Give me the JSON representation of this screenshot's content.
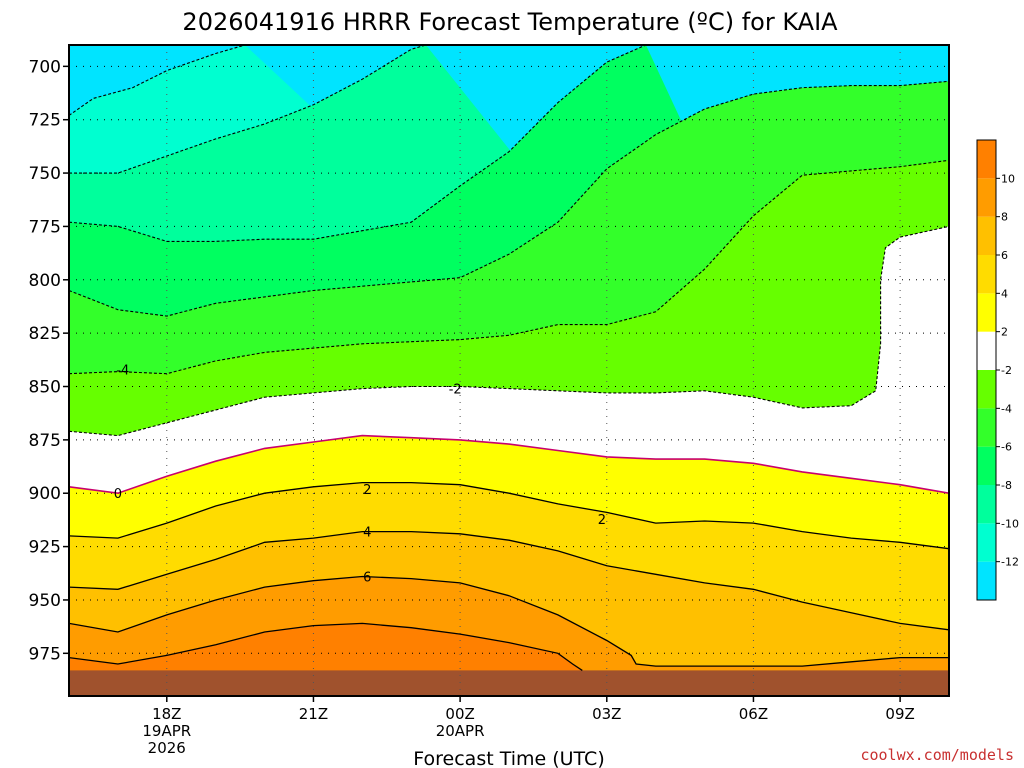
{
  "chart_data": {
    "type": "contour",
    "title": "2026041916 HRRR Forecast Temperature (ºC) for KAIA",
    "xlabel": "Forecast Time (UTC)",
    "ylabel": "",
    "y_ticks": [
      "700",
      "725",
      "750",
      "775",
      "800",
      "825",
      "850",
      "875",
      "900",
      "925",
      "950",
      "975"
    ],
    "x_ticks": [
      {
        "label": "18Z",
        "sub": [
          "19APR",
          "2026"
        ]
      },
      {
        "label": "21Z",
        "sub": []
      },
      {
        "label": "00Z",
        "sub": [
          "20APR"
        ]
      },
      {
        "label": "03Z",
        "sub": []
      },
      {
        "label": "06Z",
        "sub": []
      },
      {
        "label": "09Z",
        "sub": []
      }
    ],
    "x_hours": [
      16,
      34
    ],
    "y_range_hpa": [
      690,
      995
    ],
    "grid": "dotted",
    "colorbar": {
      "levels": [
        -14,
        -12,
        -10,
        -8,
        -6,
        -4,
        -2,
        2,
        4,
        6,
        8,
        10,
        12
      ],
      "tick_labels": [
        "-12",
        "-10",
        "-8",
        "-6",
        "-4",
        "-2",
        "2",
        "4",
        "6",
        "8",
        "10"
      ],
      "colors": [
        "#00e4ff",
        "#00ffd0",
        "#00ff9c",
        "#00ff60",
        "#33ff2a",
        "#66ff00",
        "#ffffff",
        "#ffff00",
        "#ffdc00",
        "#ffc000",
        "#ff9c00",
        "#ff8000"
      ],
      "placement": "right"
    },
    "contour_labels": [
      {
        "text": "-4",
        "x": 17.1,
        "y": 842
      },
      {
        "text": "-2",
        "x": 23.9,
        "y": 851
      },
      {
        "text": "0",
        "x": 17.0,
        "y": 900
      },
      {
        "text": "2",
        "x": 22.1,
        "y": 898
      },
      {
        "text": "2",
        "x": 26.9,
        "y": 912
      },
      {
        "text": "4",
        "x": 22.1,
        "y": 918
      },
      {
        "text": "6",
        "x": 22.1,
        "y": 939
      }
    ],
    "contours": [
      {
        "level": -12,
        "style": "dashed",
        "fill": "#00ffd0",
        "points": [
          [
            16,
            723
          ],
          [
            16.5,
            715
          ],
          [
            17.3,
            710
          ],
          [
            18,
            702
          ],
          [
            19,
            694
          ],
          [
            19.6,
            690
          ]
        ]
      },
      {
        "level": -10,
        "style": "dashed",
        "fill": "#00ff9c",
        "points": [
          [
            16,
            750
          ],
          [
            17,
            750
          ],
          [
            18,
            742
          ],
          [
            19,
            734
          ],
          [
            20,
            727
          ],
          [
            21,
            718
          ],
          [
            22,
            706
          ],
          [
            23,
            692
          ],
          [
            23.3,
            690
          ]
        ]
      },
      {
        "level": -8,
        "style": "dashed",
        "fill": "#00ff60",
        "points": [
          [
            16,
            773
          ],
          [
            17,
            775
          ],
          [
            18,
            782
          ],
          [
            19,
            782
          ],
          [
            20,
            781
          ],
          [
            21,
            781
          ],
          [
            22,
            777
          ],
          [
            23,
            773
          ],
          [
            24,
            756
          ],
          [
            25,
            740
          ],
          [
            26,
            717
          ],
          [
            27,
            698
          ],
          [
            27.8,
            690
          ]
        ]
      },
      {
        "level": -6,
        "style": "dashed",
        "fill": "#33ff2a",
        "points": [
          [
            16,
            805
          ],
          [
            17,
            814
          ],
          [
            18,
            817
          ],
          [
            19,
            811
          ],
          [
            20,
            808
          ],
          [
            21,
            805
          ],
          [
            22,
            803
          ],
          [
            23,
            801
          ],
          [
            24,
            799
          ],
          [
            25,
            788
          ],
          [
            26,
            773
          ],
          [
            27,
            748
          ],
          [
            28,
            732
          ],
          [
            29,
            720
          ],
          [
            30,
            713
          ],
          [
            31,
            710
          ],
          [
            32,
            709
          ],
          [
            33,
            709
          ],
          [
            34,
            707
          ]
        ]
      },
      {
        "level": -4,
        "style": "dashed",
        "fill": "#66ff00",
        "points": [
          [
            16,
            844
          ],
          [
            17,
            843
          ],
          [
            18,
            844
          ],
          [
            19,
            838
          ],
          [
            20,
            834
          ],
          [
            21,
            832
          ],
          [
            22,
            830
          ],
          [
            23,
            829
          ],
          [
            24,
            828
          ],
          [
            25,
            826
          ],
          [
            26,
            821
          ],
          [
            27,
            821
          ],
          [
            28,
            815
          ],
          [
            29,
            795
          ],
          [
            30,
            770
          ],
          [
            31,
            751
          ],
          [
            32,
            749
          ],
          [
            33,
            747
          ],
          [
            34,
            744
          ]
        ]
      },
      {
        "level": -2,
        "style": "dashed",
        "fill": "#ffffff",
        "points": [
          [
            16,
            871
          ],
          [
            17,
            873
          ],
          [
            18,
            867
          ],
          [
            19,
            861
          ],
          [
            20,
            855
          ],
          [
            21,
            853
          ],
          [
            22,
            851
          ],
          [
            23,
            850
          ],
          [
            24,
            850
          ],
          [
            25,
            851
          ],
          [
            26,
            852
          ],
          [
            27,
            853
          ],
          [
            28,
            853
          ],
          [
            29,
            852
          ],
          [
            30,
            855
          ],
          [
            31,
            860
          ],
          [
            32,
            859
          ],
          [
            32.5,
            852
          ],
          [
            32.6,
            830
          ],
          [
            32.6,
            800
          ],
          [
            32.7,
            785
          ],
          [
            33,
            780
          ],
          [
            34,
            775
          ]
        ]
      },
      {
        "level": 0,
        "style": "magenta",
        "fill": "#ffff00",
        "points": [
          [
            16,
            897
          ],
          [
            17,
            900
          ],
          [
            18,
            892
          ],
          [
            19,
            885
          ],
          [
            20,
            879
          ],
          [
            21,
            876
          ],
          [
            22,
            873
          ],
          [
            23,
            874
          ],
          [
            24,
            875
          ],
          [
            25,
            877
          ],
          [
            26,
            880
          ],
          [
            27,
            883
          ],
          [
            28,
            884
          ],
          [
            29,
            884
          ],
          [
            30,
            886
          ],
          [
            31,
            890
          ],
          [
            32,
            893
          ],
          [
            33,
            896
          ],
          [
            34,
            900
          ]
        ]
      },
      {
        "level": 2,
        "style": "solid",
        "fill": "#ffdc00",
        "points": [
          [
            16,
            920
          ],
          [
            17,
            921
          ],
          [
            18,
            914
          ],
          [
            19,
            906
          ],
          [
            20,
            900
          ],
          [
            21,
            897
          ],
          [
            22,
            895
          ],
          [
            23,
            895
          ],
          [
            24,
            896
          ],
          [
            25,
            900
          ],
          [
            26,
            905
          ],
          [
            27,
            909
          ],
          [
            28,
            914
          ],
          [
            29,
            913
          ],
          [
            30,
            914
          ],
          [
            31,
            918
          ],
          [
            32,
            921
          ],
          [
            33,
            923
          ],
          [
            34,
            926
          ]
        ]
      },
      {
        "level": 4,
        "style": "solid",
        "fill": "#ffc000",
        "points": [
          [
            16,
            944
          ],
          [
            17,
            945
          ],
          [
            18,
            938
          ],
          [
            19,
            931
          ],
          [
            20,
            923
          ],
          [
            21,
            921
          ],
          [
            22,
            918
          ],
          [
            23,
            918
          ],
          [
            24,
            919
          ],
          [
            25,
            922
          ],
          [
            26,
            927
          ],
          [
            27,
            934
          ],
          [
            28,
            938
          ],
          [
            29,
            942
          ],
          [
            30,
            945
          ],
          [
            31,
            951
          ],
          [
            32,
            956
          ],
          [
            33,
            961
          ],
          [
            34,
            964
          ]
        ]
      },
      {
        "level": 6,
        "style": "solid",
        "fill": "#ff9c00",
        "points": [
          [
            16,
            961
          ],
          [
            17,
            965
          ],
          [
            18,
            957
          ],
          [
            19,
            950
          ],
          [
            20,
            944
          ],
          [
            21,
            941
          ],
          [
            22,
            939
          ],
          [
            23,
            940
          ],
          [
            24,
            942
          ],
          [
            25,
            948
          ],
          [
            26,
            957
          ],
          [
            27,
            969
          ],
          [
            27.5,
            976
          ],
          [
            27.6,
            980
          ],
          [
            28,
            981
          ],
          [
            29,
            981
          ],
          [
            30,
            981
          ],
          [
            31,
            981
          ],
          [
            32,
            979
          ],
          [
            33,
            977
          ],
          [
            34,
            977
          ]
        ]
      },
      {
        "level": 8,
        "style": "solid",
        "fill": "#ff8000",
        "points": [
          [
            16,
            977
          ],
          [
            17,
            980
          ],
          [
            18,
            976
          ],
          [
            19,
            971
          ],
          [
            20,
            965
          ],
          [
            21,
            962
          ],
          [
            22,
            961
          ],
          [
            23,
            963
          ],
          [
            24,
            966
          ],
          [
            25,
            970
          ],
          [
            26,
            975
          ],
          [
            26.3,
            980
          ],
          [
            26.5,
            983
          ]
        ]
      }
    ],
    "ground": {
      "color": "#a0522d",
      "top_hpa": 983
    }
  },
  "credit": "coolwx.com/models"
}
